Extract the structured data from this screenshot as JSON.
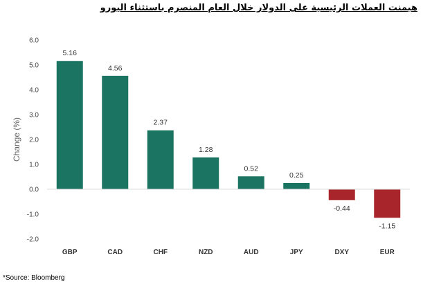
{
  "header": {
    "title": "هيمنت العملات الرئيسية على الدولار خلال العام المنصرم باستثناء اليورو"
  },
  "footer": {
    "source": "*Source: Bloomberg"
  },
  "colors": {
    "positive": "#1a7461",
    "negative": "#a8262b"
  },
  "chart_data": {
    "type": "bar",
    "categories": [
      "GBP",
      "CAD",
      "CHF",
      "NZD",
      "AUD",
      "JPY",
      "DXY",
      "EUR"
    ],
    "values": [
      5.16,
      4.56,
      2.37,
      1.28,
      0.52,
      0.25,
      -0.44,
      -1.15
    ],
    "data_labels": [
      "5.16",
      "4.56",
      "2.37",
      "1.28",
      "0.52",
      "0.25",
      "-0.44",
      "-1.15"
    ],
    "xlabel": "",
    "ylabel": "Change (%)",
    "ylim": [
      -2.0,
      6.0
    ],
    "yticks": [
      6.0,
      5.0,
      4.0,
      3.0,
      2.0,
      1.0,
      0.0,
      -1.0,
      -2.0
    ],
    "ytick_labels": [
      "6.0",
      "5.0",
      "4.0",
      "3.0",
      "2.0",
      "1.0",
      "0.0",
      "-1.0",
      "-2.0"
    ],
    "grid": false,
    "legend": "none"
  }
}
